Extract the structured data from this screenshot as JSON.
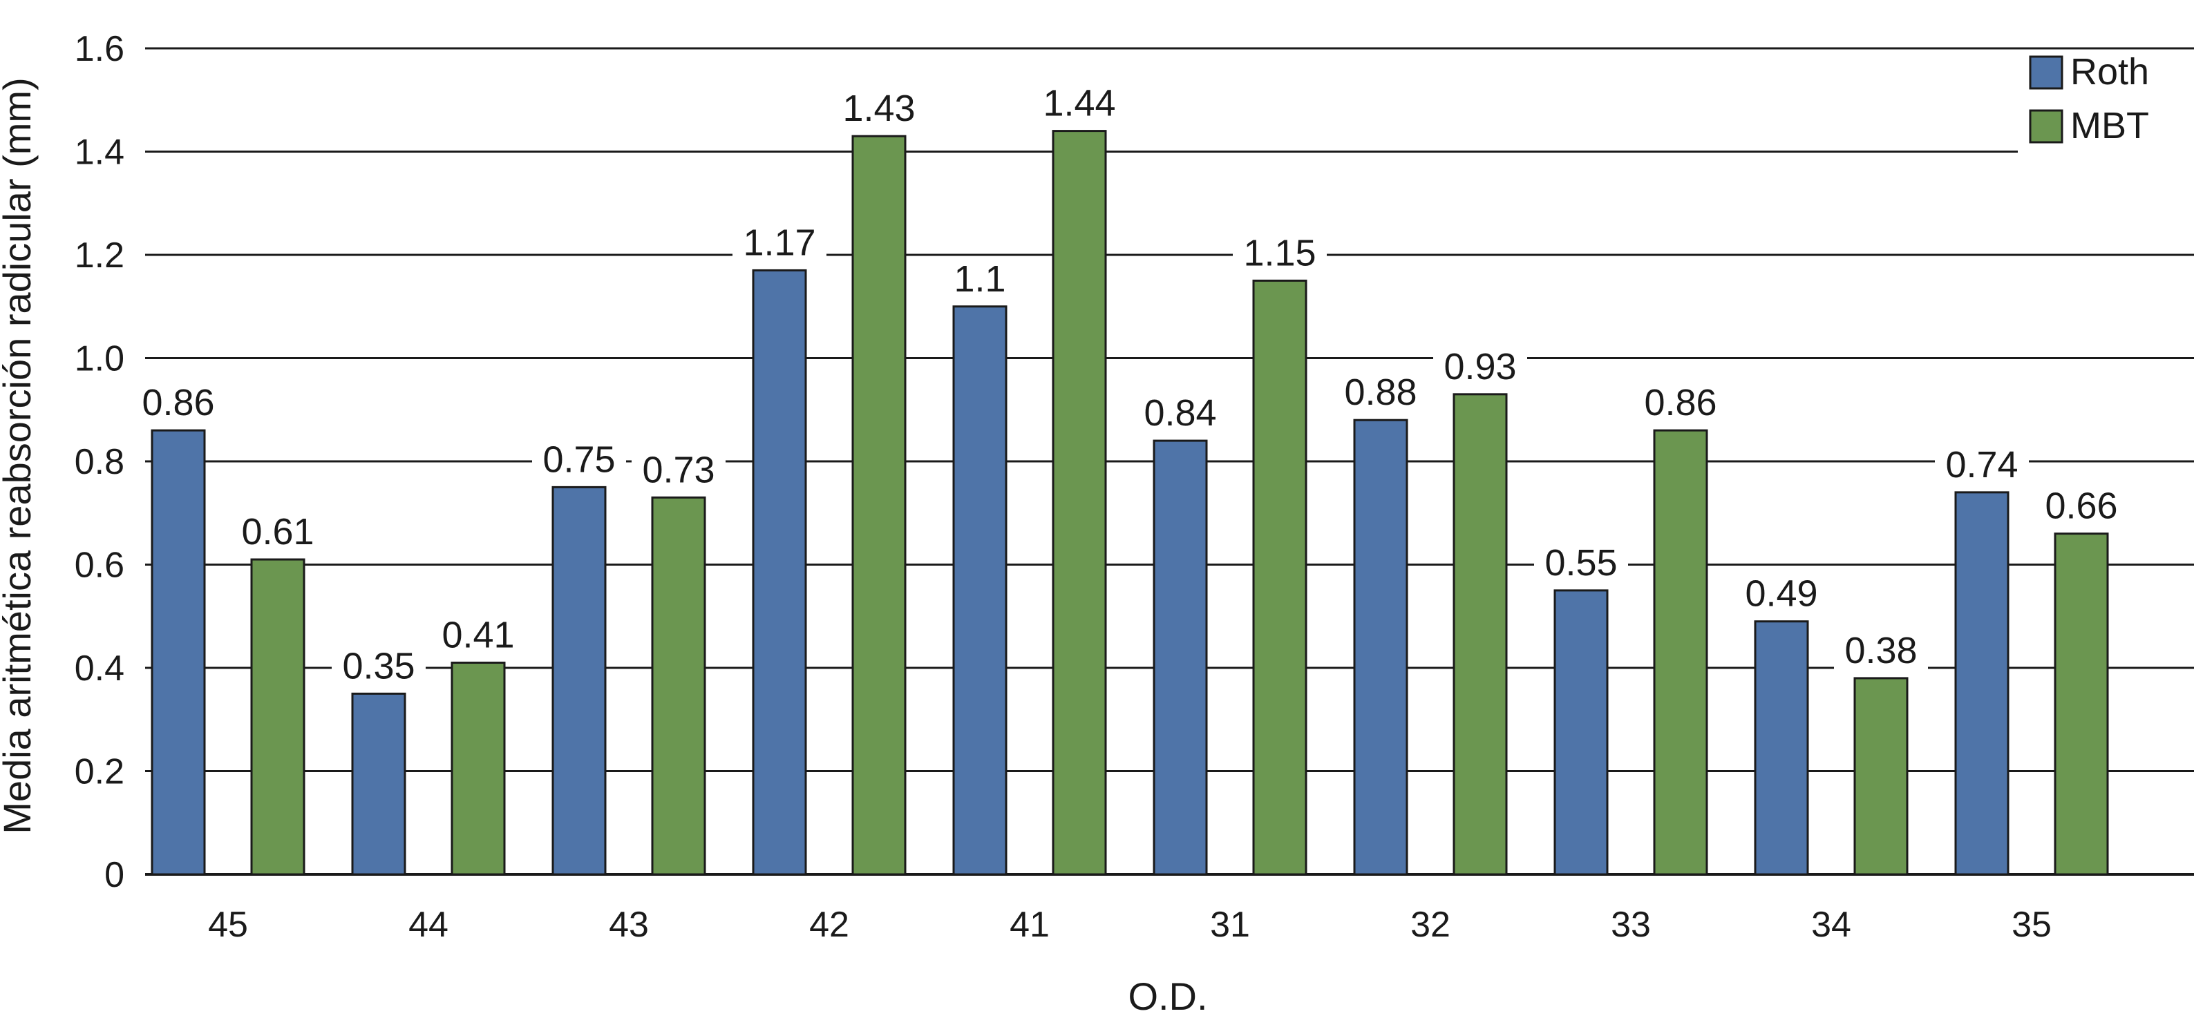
{
  "chart_data": {
    "type": "bar",
    "title": "",
    "xlabel": "O.D.",
    "ylabel": "Media aritmética reabsorción radicular (mm)",
    "ylim": [
      0,
      1.6
    ],
    "yticks": [
      0,
      0.2,
      0.4,
      0.6,
      0.8,
      1.0,
      1.2,
      1.4,
      1.6
    ],
    "ytick_labels": [
      "0",
      "0.2",
      "0.4",
      "0.6",
      "0.8",
      "1.0",
      "1.2",
      "1.4",
      "1.6"
    ],
    "grid": true,
    "legend_position": "top-right",
    "categories": [
      "45",
      "44",
      "43",
      "42",
      "41",
      "31",
      "32",
      "33",
      "34",
      "35"
    ],
    "series": [
      {
        "name": "Roth",
        "color": "#4f74a8",
        "values": [
          0.86,
          0.35,
          0.75,
          1.17,
          1.1,
          0.84,
          0.88,
          0.55,
          0.49,
          0.74
        ],
        "labels": [
          "0.86",
          "0.35",
          "0.75",
          "1.17",
          "1.1",
          "0.84",
          "0.88",
          "0.55",
          "0.49",
          "0.74"
        ]
      },
      {
        "name": "MBT",
        "color": "#6b9650",
        "values": [
          0.61,
          0.41,
          0.73,
          1.43,
          1.44,
          1.15,
          0.93,
          0.86,
          0.38,
          0.66
        ],
        "labels": [
          "0.61",
          "0.41",
          "0.73",
          "1.43",
          "1.44",
          "1.15",
          "0.93",
          "0.86",
          "0.38",
          "0.66"
        ]
      }
    ]
  }
}
